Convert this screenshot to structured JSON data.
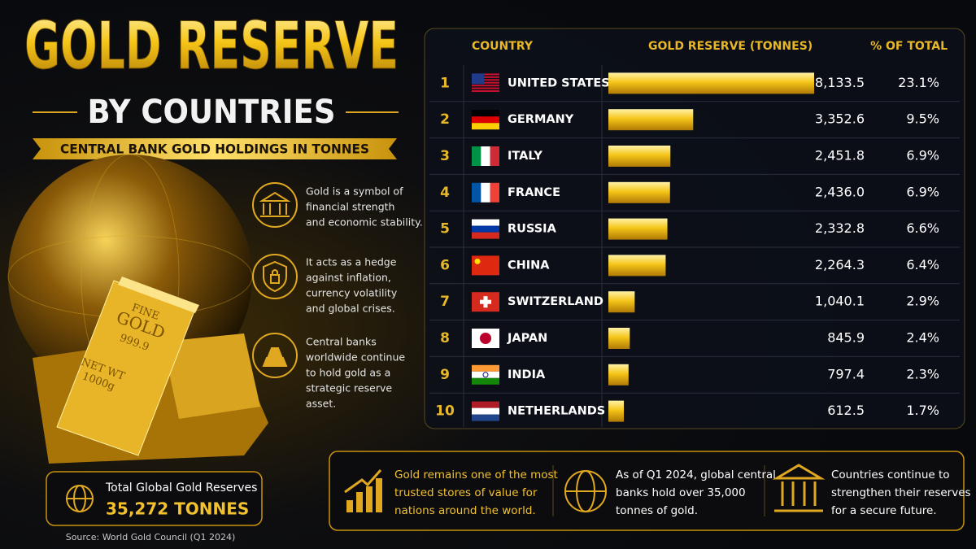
{
  "header": {
    "title": "GOLD RESERVE",
    "subtitle": "BY COUNTRIES",
    "ribbon": "CENTRAL BANK GOLD HOLDINGS IN TONNES"
  },
  "illustration": {
    "bar_text": [
      "FINE",
      "GOLD",
      "999.9",
      "NET WT",
      "1000g"
    ]
  },
  "facts": [
    [
      "Gold is a symbol of",
      "financial strength",
      "and economic stability."
    ],
    [
      "It acts as a hedge",
      "against inflation,",
      "currency volatility",
      "and global crises."
    ],
    [
      "Central banks",
      "worldwide continue",
      "to hold gold as a",
      "strategic reserve",
      "asset."
    ]
  ],
  "table": {
    "columns": [
      "COUNTRY",
      "GOLD RESERVE (TONNES)",
      "% OF TOTAL"
    ],
    "rows": [
      {
        "rank": 1,
        "country": "UNITED STATES",
        "reserve": {
          "value": 8133.5,
          "label": "8,133.5"
        },
        "share": "23.1%"
      },
      {
        "rank": 2,
        "country": "GERMANY",
        "reserve": {
          "value": 3352.6,
          "label": "3,352.6"
        },
        "share": "9.5%"
      },
      {
        "rank": 3,
        "country": "ITALY",
        "reserve": {
          "value": 2451.8,
          "label": "2,451.8"
        },
        "share": "6.9%"
      },
      {
        "rank": 4,
        "country": "FRANCE",
        "reserve": {
          "value": 2436.0,
          "label": "2,436.0"
        },
        "share": "6.9%"
      },
      {
        "rank": 5,
        "country": "RUSSIA",
        "reserve": {
          "value": 2332.8,
          "label": "2,332.8"
        },
        "share": "6.6%"
      },
      {
        "rank": 6,
        "country": "CHINA",
        "reserve": {
          "value": 2264.3,
          "label": "2,264.3"
        },
        "share": "6.4%"
      },
      {
        "rank": 7,
        "country": "SWITZERLAND",
        "reserve": {
          "value": 1040.1,
          "label": "1,040.1"
        },
        "share": "2.9%"
      },
      {
        "rank": 8,
        "country": "JAPAN",
        "reserve": {
          "value": 845.9,
          "label": "845.9"
        },
        "share": "2.4%"
      },
      {
        "rank": 9,
        "country": "INDIA",
        "reserve": {
          "value": 797.4,
          "label": "797.4"
        },
        "share": "2.3%"
      },
      {
        "rank": 10,
        "country": "NETHERLANDS",
        "reserve": {
          "value": 612.5,
          "label": "612.5"
        },
        "share": "1.7%"
      }
    ]
  },
  "total": {
    "label": "Total Global Gold Reserves",
    "value": "35,272 TONNES"
  },
  "source": "Source: World Gold Council (Q1 2024)",
  "notes": [
    [
      "Gold remains one of the most",
      "trusted stores of value for",
      "nations around the world."
    ],
    [
      "As of Q1 2024, global central",
      "banks hold over 35,000",
      "tonnes of gold."
    ],
    [
      "Countries continue to",
      "strengthen their reserves",
      "for a secure future."
    ]
  ]
}
